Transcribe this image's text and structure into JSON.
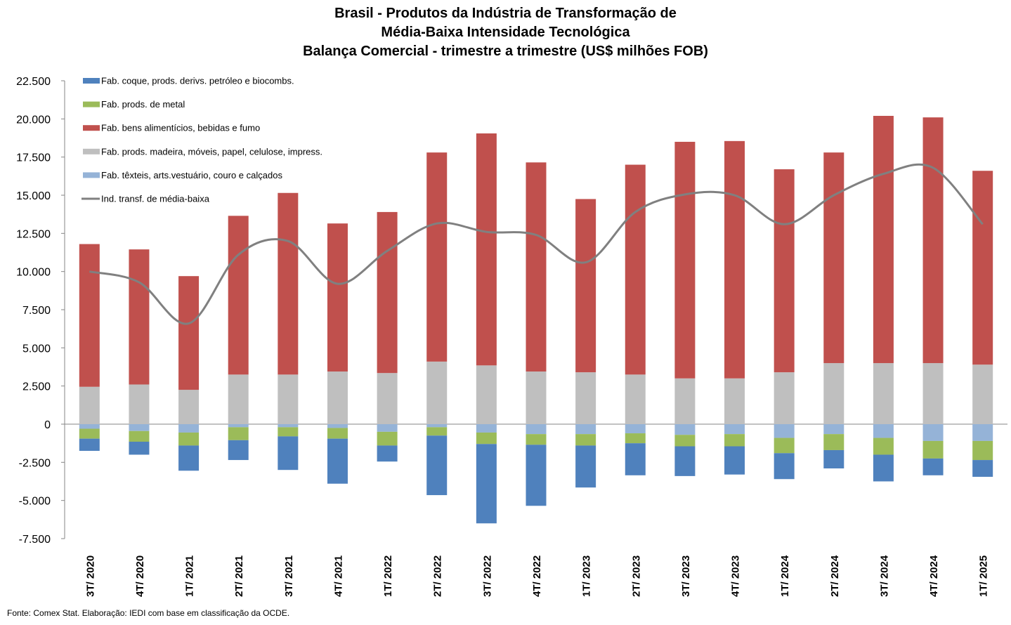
{
  "title_lines": [
    "Brasil - Produtos da Indústria de Transformação de",
    "Média-Baixa Intensidade Tecnológica",
    "Balança Comercial - trimestre a trimestre (US$ milhões FOB)"
  ],
  "source": "Fonte: Comex Stat. Elaboração: IEDI com base em classificação da OCDE.",
  "colors": {
    "coque": "#4F81BD",
    "metal": "#9BBB59",
    "alimentos": "#C0504D",
    "madeira": "#BFBFBF",
    "texteis": "#95B3D7",
    "line": "#808080"
  },
  "chart_data": {
    "type": "bar",
    "stacked": true,
    "title": "Brasil - Produtos da Indústria de Transformação de Média-Baixa Intensidade Tecnológica Balança Comercial - trimestre a trimestre (US$ milhões FOB)",
    "xlabel": "",
    "ylabel": "",
    "ylim": [
      -7500,
      22500
    ],
    "yticks": [
      22500,
      20000,
      17500,
      15000,
      12500,
      10000,
      7500,
      5000,
      2500,
      0,
      -2500,
      -5000,
      -7500
    ],
    "ytick_labels": [
      "22.500",
      "20.000",
      "17.500",
      "15.000",
      "12.500",
      "10.000",
      "7.500",
      "5.000",
      "2.500",
      "0",
      "-2.500",
      "-5.000",
      "-7.500"
    ],
    "legend_position": "top-left",
    "grid": false,
    "categories": [
      "3T/ 2020",
      "4T/ 2020",
      "1T/ 2021",
      "2T/ 2021",
      "3T/ 2021",
      "4T/ 2021",
      "1T/ 2022",
      "2T/ 2022",
      "3T/ 2022",
      "4T/ 2022",
      "1T/ 2023",
      "2T/ 2023",
      "3T/ 2023",
      "4T/ 2023",
      "1T/ 2024",
      "2T/ 2024",
      "3T/ 2024",
      "4T/ 2024",
      "1T/ 2025"
    ],
    "series": [
      {
        "name": "Fab. coque, prods. derivs. petróleo e biocombs.",
        "key": "coque",
        "kind": "bar",
        "values": [
          -800,
          -850,
          -1650,
          -1300,
          -2200,
          -2950,
          -1050,
          -3900,
          -5200,
          -4000,
          -2750,
          -2100,
          -1950,
          -1850,
          -1700,
          -1200,
          -1750,
          -1100,
          -1100
        ]
      },
      {
        "name": "Fab. prods. de metal",
        "key": "metal",
        "kind": "bar",
        "values": [
          -650,
          -700,
          -850,
          -850,
          -600,
          -700,
          -900,
          -550,
          -750,
          -700,
          -750,
          -650,
          -750,
          -800,
          -1000,
          -1050,
          -1100,
          -1150,
          -1250
        ]
      },
      {
        "name": "Fab. bens alimentícios, bebidas e fumo",
        "key": "alimentos",
        "kind": "bar",
        "values": [
          9350,
          8850,
          7450,
          10400,
          11900,
          9700,
          10550,
          13700,
          15200,
          13700,
          11350,
          13750,
          15500,
          15550,
          13300,
          13800,
          16200,
          16100,
          12700
        ]
      },
      {
        "name": "Fab. prods. madeira, móveis, papel, celulose, impress.",
        "key": "madeira",
        "kind": "bar",
        "values": [
          2450,
          2600,
          2250,
          3250,
          3250,
          3450,
          3350,
          4100,
          3850,
          3450,
          3400,
          3250,
          3000,
          3000,
          3400,
          4000,
          4000,
          4000,
          3900
        ]
      },
      {
        "name": "Fab. têxteis, arts.vestuário, couro e calçados",
        "key": "texteis",
        "kind": "bar",
        "values": [
          -300,
          -450,
          -550,
          -200,
          -200,
          -250,
          -500,
          -200,
          -550,
          -650,
          -650,
          -600,
          -700,
          -650,
          -900,
          -650,
          -900,
          -1100,
          -1100
        ]
      },
      {
        "name": "Ind. transf. de média-baixa",
        "key": "line",
        "kind": "line",
        "values": [
          10000,
          9300,
          6600,
          11100,
          12000,
          9200,
          11350,
          13150,
          12600,
          12400,
          10600,
          13900,
          15050,
          15000,
          13100,
          15000,
          16400,
          16800,
          13100
        ]
      }
    ]
  }
}
